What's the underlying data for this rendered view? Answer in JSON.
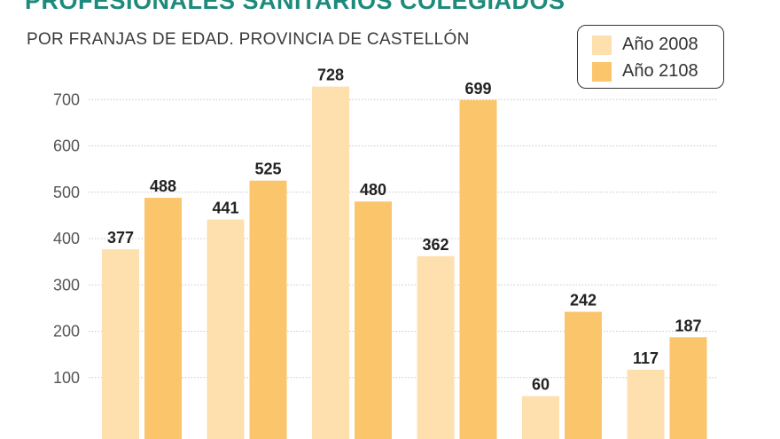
{
  "chart_data": {
    "type": "bar",
    "title": "PROFESIONALES SANITARIOS COLEGIADOS",
    "subtitle": "POR FRANJAS DE EDAD. PROVINCIA DE CASTELLÓN",
    "categories": [
      "",
      "",
      "",
      "",
      "",
      ""
    ],
    "series": [
      {
        "name": "Año 2008",
        "color": "#fde0ae",
        "values": [
          377,
          441,
          728,
          362,
          60,
          117
        ]
      },
      {
        "name": "Año 2108",
        "color": "#fbc56c",
        "values": [
          488,
          525,
          480,
          699,
          242,
          187
        ]
      }
    ],
    "yticks": [
      100,
      200,
      300,
      400,
      500,
      600,
      700
    ],
    "ylim": [
      0,
      730
    ],
    "grid": true,
    "legend_position": "top-right"
  }
}
